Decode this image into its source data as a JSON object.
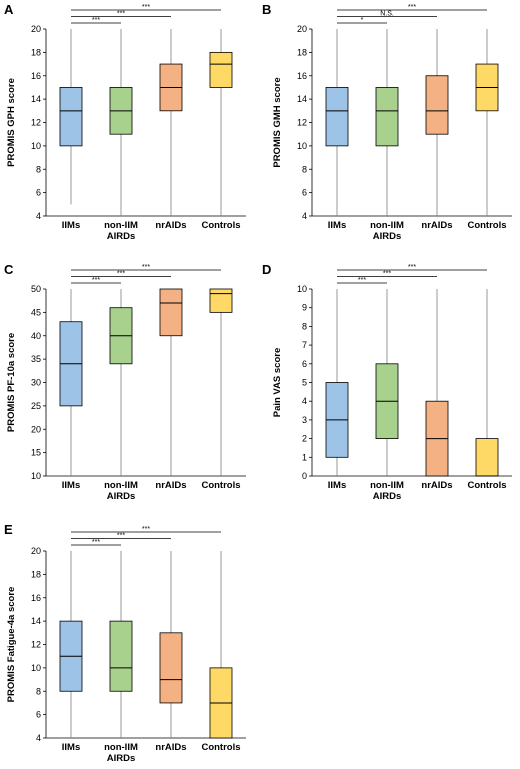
{
  "figure": {
    "panels": [
      "A",
      "B",
      "C",
      "D",
      "E"
    ]
  },
  "colors": {
    "IIMs": "#9dc3e6",
    "non-IIM AIRDs": "#a9d18e",
    "nrAIDs": "#f4b183",
    "Controls": "#ffd966",
    "axis": "#000000",
    "whisker": "#7f7f7f"
  },
  "chart_data": [
    {
      "type": "box",
      "panel": "A",
      "ylabel": "PROMIS GPH score",
      "ylim": [
        4,
        20
      ],
      "yticks": [
        "4",
        "6",
        "8",
        "10",
        "12",
        "14",
        "16",
        "18",
        "20"
      ],
      "ytick_values": [
        4,
        6,
        8,
        10,
        12,
        14,
        16,
        18,
        20
      ],
      "categories": [
        {
          "line1": "IIMs",
          "line2": ""
        },
        {
          "line1": "non-IIM",
          "line2": "AIRDs"
        },
        {
          "line1": "nrAIDs",
          "line2": ""
        },
        {
          "line1": "Controls",
          "line2": ""
        }
      ],
      "boxes": [
        {
          "min": 5,
          "q1": 10,
          "median": 13,
          "q3": 15,
          "max": 20
        },
        {
          "min": 4,
          "q1": 11,
          "median": 13,
          "q3": 15,
          "max": 20
        },
        {
          "min": 4,
          "q1": 13,
          "median": 15,
          "q3": 17,
          "max": 20
        },
        {
          "min": 4,
          "q1": 15,
          "median": 17,
          "q3": 18,
          "max": 20
        }
      ],
      "significance": [
        {
          "to": 1,
          "label": "***"
        },
        {
          "to": 2,
          "label": "***"
        },
        {
          "to": 3,
          "label": "***"
        }
      ]
    },
    {
      "type": "box",
      "panel": "B",
      "ylabel": "PROMIS GMH score",
      "ylim": [
        4,
        20
      ],
      "yticks": [
        "4",
        "6",
        "8",
        "10",
        "12",
        "14",
        "16",
        "18",
        "20"
      ],
      "ytick_values": [
        4,
        6,
        8,
        10,
        12,
        14,
        16,
        18,
        20
      ],
      "categories": [
        {
          "line1": "IIMs",
          "line2": ""
        },
        {
          "line1": "non-IIM",
          "line2": "AIRDs"
        },
        {
          "line1": "nrAIDs",
          "line2": ""
        },
        {
          "line1": "Controls",
          "line2": ""
        }
      ],
      "boxes": [
        {
          "min": 4,
          "q1": 10,
          "median": 13,
          "q3": 15,
          "max": 20
        },
        {
          "min": 4,
          "q1": 10,
          "median": 13,
          "q3": 15,
          "max": 20
        },
        {
          "min": 4,
          "q1": 11,
          "median": 13,
          "q3": 16,
          "max": 20
        },
        {
          "min": 4,
          "q1": 13,
          "median": 15,
          "q3": 17,
          "max": 20
        }
      ],
      "significance": [
        {
          "to": 1,
          "label": "*"
        },
        {
          "to": 2,
          "label": "N.S."
        },
        {
          "to": 3,
          "label": "***"
        }
      ]
    },
    {
      "type": "box",
      "panel": "C",
      "ylabel": "PROMIS PF-10a score",
      "ylim": [
        10,
        50
      ],
      "yticks": [
        "10",
        "15",
        "20",
        "25",
        "30",
        "35",
        "40",
        "45",
        "50"
      ],
      "ytick_values": [
        10,
        15,
        20,
        25,
        30,
        35,
        40,
        45,
        50
      ],
      "categories": [
        {
          "line1": "IIMs",
          "line2": ""
        },
        {
          "line1": "non-IIM",
          "line2": "AIRDs"
        },
        {
          "line1": "nrAIDs",
          "line2": ""
        },
        {
          "line1": "Controls",
          "line2": ""
        }
      ],
      "boxes": [
        {
          "min": 10,
          "q1": 25,
          "median": 34,
          "q3": 43,
          "max": 50
        },
        {
          "min": 10,
          "q1": 34,
          "median": 40,
          "q3": 46,
          "max": 50
        },
        {
          "min": 10,
          "q1": 40,
          "median": 47,
          "q3": 50,
          "max": 50
        },
        {
          "min": 10,
          "q1": 45,
          "median": 49,
          "q3": 50,
          "max": 50
        }
      ],
      "significance": [
        {
          "to": 1,
          "label": "***"
        },
        {
          "to": 2,
          "label": "***"
        },
        {
          "to": 3,
          "label": "***"
        }
      ]
    },
    {
      "type": "box",
      "panel": "D",
      "ylabel": "Pain VAS score",
      "ylim": [
        0,
        10
      ],
      "yticks": [
        "0",
        "1",
        "2",
        "3",
        "4",
        "5",
        "6",
        "7",
        "8",
        "9",
        "10"
      ],
      "ytick_values": [
        0,
        1,
        2,
        3,
        4,
        5,
        6,
        7,
        8,
        9,
        10
      ],
      "categories": [
        {
          "line1": "IIMs",
          "line2": ""
        },
        {
          "line1": "non-IIM",
          "line2": "AIRDs"
        },
        {
          "line1": "nrAIDs",
          "line2": ""
        },
        {
          "line1": "Controls",
          "line2": ""
        }
      ],
      "boxes": [
        {
          "min": 0,
          "q1": 1,
          "median": 3,
          "q3": 5,
          "max": 10
        },
        {
          "min": 0,
          "q1": 2,
          "median": 4,
          "q3": 6,
          "max": 10
        },
        {
          "min": 0,
          "q1": 0,
          "median": 2,
          "q3": 4,
          "max": 10
        },
        {
          "min": 0,
          "q1": 0,
          "median": 0,
          "q3": 2,
          "max": 10
        }
      ],
      "significance": [
        {
          "to": 1,
          "label": "***"
        },
        {
          "to": 2,
          "label": "***"
        },
        {
          "to": 3,
          "label": "***"
        }
      ]
    },
    {
      "type": "box",
      "panel": "E",
      "ylabel": "PROMIS Fatigue-4a score",
      "ylim": [
        4,
        20
      ],
      "yticks": [
        "4",
        "6",
        "8",
        "10",
        "12",
        "14",
        "16",
        "18",
        "20"
      ],
      "ytick_values": [
        4,
        6,
        8,
        10,
        12,
        14,
        16,
        18,
        20
      ],
      "categories": [
        {
          "line1": "IIMs",
          "line2": ""
        },
        {
          "line1": "non-IIM",
          "line2": "AIRDs"
        },
        {
          "line1": "nrAIDs",
          "line2": ""
        },
        {
          "line1": "Controls",
          "line2": ""
        }
      ],
      "boxes": [
        {
          "min": 4,
          "q1": 8,
          "median": 11,
          "q3": 14,
          "max": 20
        },
        {
          "min": 4,
          "q1": 8,
          "median": 10,
          "q3": 14,
          "max": 20
        },
        {
          "min": 4,
          "q1": 7,
          "median": 9,
          "q3": 13,
          "max": 20
        },
        {
          "min": 4,
          "q1": 4,
          "median": 7,
          "q3": 10,
          "max": 20
        }
      ],
      "significance": [
        {
          "to": 1,
          "label": "***"
        },
        {
          "to": 2,
          "label": "***"
        },
        {
          "to": 3,
          "label": "***"
        }
      ]
    }
  ]
}
